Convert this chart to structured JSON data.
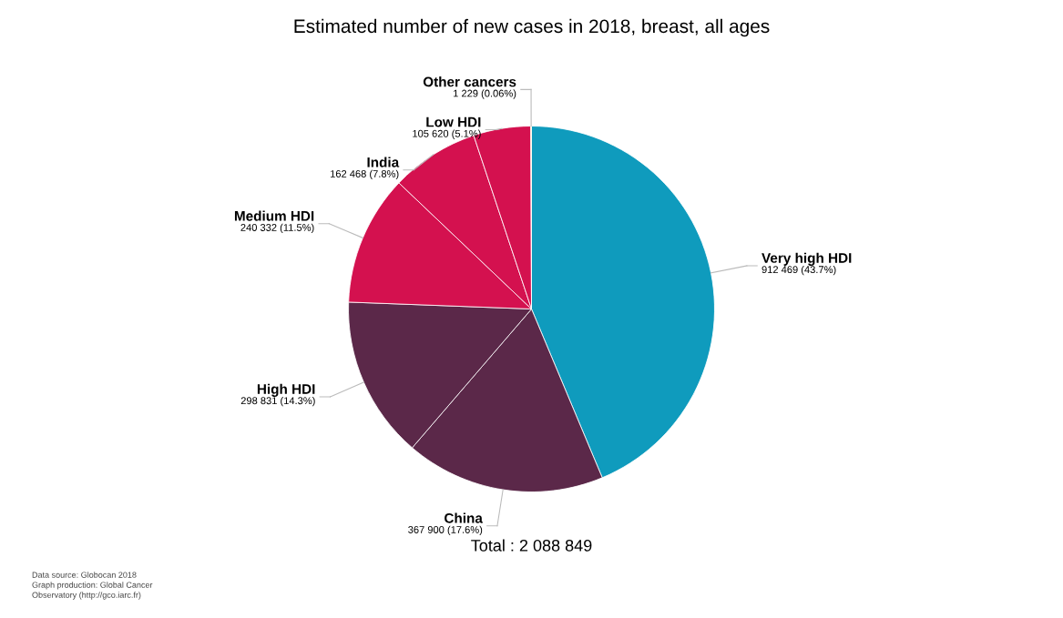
{
  "chart_data": {
    "type": "pie",
    "title": "Estimated number of new cases in 2018, breast, all ages",
    "categories": [
      "Very high HDI",
      "China",
      "High HDI",
      "Medium HDI",
      "India",
      "Low HDI",
      "Other cancers"
    ],
    "values": [
      912469,
      367900,
      298831,
      240332,
      162468,
      105620,
      1229
    ],
    "value_labels": [
      "912 469 (43.7%)",
      "367 900 (17.6%)",
      "298 831 (14.3%)",
      "240 332 (11.5%)",
      "162 468 (7.8%)",
      "105 620 (5.1%)",
      "1 229 (0.06%)"
    ],
    "colors": [
      "#0f9bbd",
      "#5b2849",
      "#5b2849",
      "#d4114f",
      "#d4114f",
      "#d4114f",
      "#f8d71c"
    ],
    "annotations": [
      "Total : 2 088 849",
      "Data source: Globocan 2018\nGraph production: Global Cancer\nObservatory (http://gco.iarc.fr)"
    ],
    "legend": false
  }
}
